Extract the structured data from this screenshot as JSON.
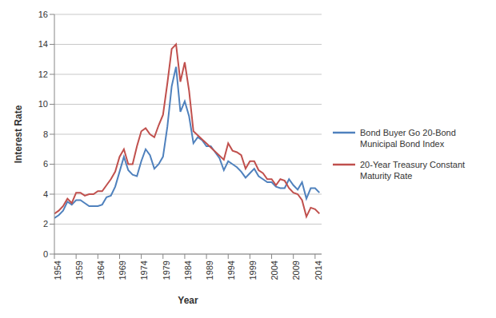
{
  "chart_data": {
    "type": "line",
    "x_label": "Year",
    "y_label": "Interest Rate",
    "x": [
      1954,
      1955,
      1956,
      1957,
      1958,
      1959,
      1960,
      1961,
      1962,
      1963,
      1964,
      1965,
      1966,
      1967,
      1968,
      1969,
      1970,
      1971,
      1972,
      1973,
      1974,
      1975,
      1976,
      1977,
      1978,
      1979,
      1980,
      1981,
      1982,
      1983,
      1984,
      1985,
      1986,
      1987,
      1988,
      1989,
      1990,
      1991,
      1992,
      1993,
      1994,
      1995,
      1996,
      1997,
      1998,
      1999,
      2000,
      2001,
      2002,
      2003,
      2004,
      2005,
      2006,
      2007,
      2008,
      2009,
      2010,
      2011,
      2012,
      2013,
      2014,
      2015
    ],
    "series": [
      {
        "name": "Bond Buyer Go 20-Bond Municipal Bond Index",
        "color": "#4f81bd",
        "values": [
          2.4,
          2.6,
          2.9,
          3.5,
          3.3,
          3.6,
          3.6,
          3.4,
          3.2,
          3.2,
          3.2,
          3.3,
          3.8,
          3.9,
          4.5,
          5.5,
          6.5,
          5.6,
          5.3,
          5.2,
          6.2,
          7.0,
          6.6,
          5.7,
          6.0,
          6.5,
          8.5,
          11.2,
          12.5,
          9.5,
          10.2,
          9.2,
          7.4,
          7.8,
          7.6,
          7.2,
          7.2,
          6.8,
          6.4,
          5.6,
          6.2,
          6.0,
          5.8,
          5.5,
          5.1,
          5.4,
          5.7,
          5.2,
          5.0,
          4.8,
          4.8,
          4.5,
          4.4,
          4.4,
          5.0,
          4.6,
          4.3,
          4.8,
          3.7,
          4.4,
          4.4,
          4.1
        ]
      },
      {
        "name": "20-Year Treasury Constant Maturity Rate",
        "color": "#c0504d",
        "values": [
          2.7,
          2.9,
          3.2,
          3.7,
          3.4,
          4.1,
          4.1,
          3.9,
          4.0,
          4.0,
          4.2,
          4.2,
          4.6,
          5.0,
          5.5,
          6.5,
          7.0,
          6.0,
          6.0,
          7.2,
          8.2,
          8.4,
          8.0,
          7.8,
          8.6,
          9.3,
          11.4,
          13.7,
          14.0,
          11.5,
          12.8,
          10.9,
          8.2,
          null,
          null,
          null,
          null,
          null,
          null,
          6.3,
          7.4,
          6.9,
          6.8,
          6.6,
          5.7,
          6.2,
          6.2,
          5.6,
          5.4,
          5.0,
          5.0,
          4.6,
          5.0,
          4.9,
          4.4,
          4.1,
          4.0,
          3.6,
          2.5,
          3.1,
          3.0,
          2.7
        ]
      }
    ],
    "xlim": [
      1954,
      2015.5
    ],
    "xticks": [
      1954,
      1959,
      1964,
      1969,
      1974,
      1979,
      1984,
      1989,
      1994,
      1999,
      2004,
      2009,
      2014
    ],
    "ylim": [
      0,
      16
    ],
    "yticks": [
      0,
      2,
      4,
      6,
      8,
      10,
      12,
      14,
      16
    ],
    "grid": true,
    "legend": "right"
  }
}
